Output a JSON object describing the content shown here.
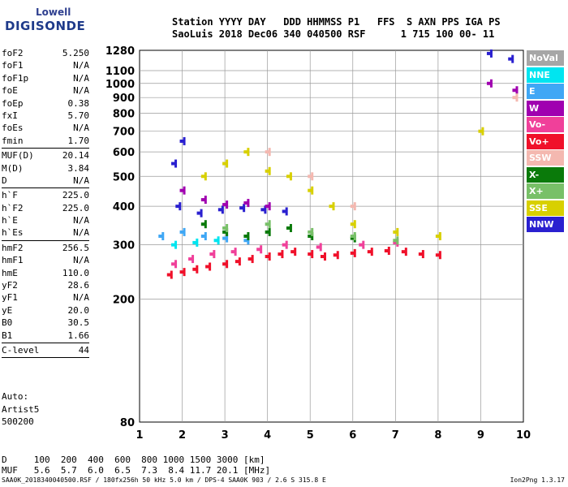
{
  "logo": {
    "top": "Lowell",
    "bottom": "DIGISONDE"
  },
  "header": {
    "line1": "Station YYYY DAY   DDD HHMMSS P1   FFS  S AXN PPS IGA PS",
    "line2": "SaoLuis 2018 Dec06 340 040500 RSF      1 715 100 00- 11"
  },
  "params": [
    {
      "label": "foF2",
      "value": "5.250"
    },
    {
      "label": "foF1",
      "value": "N/A"
    },
    {
      "label": "foF1p",
      "value": "N/A"
    },
    {
      "label": "foE",
      "value": "N/A"
    },
    {
      "label": "foEp",
      "value": "0.38"
    },
    {
      "label": "fxI",
      "value": "5.70"
    },
    {
      "label": "foEs",
      "value": "N/A"
    },
    {
      "label": "fmin",
      "value": "1.70",
      "sep": true
    },
    {
      "label": "MUF(D)",
      "value": "20.14"
    },
    {
      "label": "M(D)",
      "value": "3.84"
    },
    {
      "label": "D",
      "value": "N/A",
      "sep": true
    },
    {
      "label": "h`F",
      "value": "225.0"
    },
    {
      "label": "h`F2",
      "value": "225.0"
    },
    {
      "label": "h`E",
      "value": "N/A"
    },
    {
      "label": "h`Es",
      "value": "N/A",
      "sep": true
    },
    {
      "label": "hmF2",
      "value": "256.5"
    },
    {
      "label": "hmF1",
      "value": "N/A"
    },
    {
      "label": "hmE",
      "value": "110.0"
    },
    {
      "label": "yF2",
      "value": "28.6"
    },
    {
      "label": "yF1",
      "value": "N/A"
    },
    {
      "label": "yE",
      "value": "20.0"
    },
    {
      "label": "B0",
      "value": "30.5"
    },
    {
      "label": "B1",
      "value": "1.66",
      "sep": true
    },
    {
      "label": "C-level",
      "value": "44",
      "sep": true
    }
  ],
  "auto": {
    "line1": "Auto:",
    "line2": "Artist5",
    "line3": "500200"
  },
  "dmuf": {
    "d_line": "D     100  200  400  600  800 1000 1500 3000 [km]",
    "muf_line": "MUF   5.6  5.7  6.0  6.5  7.3  8.4 11.7 20.1 [MHz]"
  },
  "footer": "SAA0K_2018340040500.RSF / 180fx256h 50 kHz 5.0 km / DPS-4 SAA0K 903 / 2.6 S 315.8 E",
  "version": "Ion2Png 1.3.17",
  "legend": [
    {
      "label": "NoVal",
      "color": "#a6a6a6"
    },
    {
      "label": "NNE",
      "color": "#00e5f0"
    },
    {
      "label": "E",
      "color": "#3fa7f5"
    },
    {
      "label": "W",
      "color": "#a000b0"
    },
    {
      "label": "Vo-",
      "color": "#f0409a"
    },
    {
      "label": "Vo+",
      "color": "#f0102a"
    },
    {
      "label": "SSW",
      "color": "#f4b8b0"
    },
    {
      "label": "X-",
      "color": "#0a7a0a"
    },
    {
      "label": "X+",
      "color": "#78c068"
    },
    {
      "label": "SSE",
      "color": "#d8d000"
    },
    {
      "label": "NNW",
      "color": "#2a20d0"
    }
  ],
  "chart_data": {
    "type": "scatter",
    "title": "",
    "xlabel": "",
    "ylabel": "",
    "xlim": [
      1,
      10
    ],
    "ylim": [
      80,
      1280
    ],
    "yscale": "log",
    "grid": true,
    "x_ticks": [
      "1",
      "2",
      "3",
      "4",
      "5",
      "6",
      "7",
      "8",
      "9",
      "10"
    ],
    "y_ticks": [
      "80",
      "200",
      "300",
      "400",
      "500",
      "600",
      "700",
      "800",
      "900",
      "1000",
      "1100",
      "1280"
    ],
    "legend_position": "right",
    "series": [
      {
        "name": "Vo+",
        "color": "#f0102a",
        "points": [
          [
            1.7,
            240
          ],
          [
            2.0,
            245
          ],
          [
            2.3,
            250
          ],
          [
            2.6,
            255
          ],
          [
            3.0,
            260
          ],
          [
            3.3,
            265
          ],
          [
            3.6,
            270
          ],
          [
            4.0,
            275
          ],
          [
            4.3,
            280
          ],
          [
            4.6,
            285
          ],
          [
            5.0,
            280
          ],
          [
            5.3,
            275
          ],
          [
            5.6,
            278
          ],
          [
            6.0,
            282
          ],
          [
            6.4,
            285
          ],
          [
            6.8,
            287
          ],
          [
            7.2,
            285
          ],
          [
            7.6,
            280
          ],
          [
            8.0,
            278
          ]
        ]
      },
      {
        "name": "Vo-",
        "color": "#f0409a",
        "points": [
          [
            1.8,
            260
          ],
          [
            2.2,
            270
          ],
          [
            2.7,
            280
          ],
          [
            3.2,
            285
          ],
          [
            3.8,
            290
          ],
          [
            4.4,
            300
          ],
          [
            5.2,
            295
          ],
          [
            6.2,
            300
          ],
          [
            7.0,
            305
          ]
        ]
      },
      {
        "name": "NNW",
        "color": "#2a20d0",
        "points": [
          [
            1.9,
            400
          ],
          [
            2.4,
            380
          ],
          [
            2.9,
            390
          ],
          [
            3.4,
            395
          ],
          [
            3.9,
            390
          ],
          [
            4.4,
            385
          ],
          [
            1.8,
            550
          ],
          [
            2.0,
            650
          ],
          [
            9.2,
            1250
          ],
          [
            9.7,
            1200
          ]
        ]
      },
      {
        "name": "W",
        "color": "#a000b0",
        "points": [
          [
            2.0,
            450
          ],
          [
            2.5,
            420
          ],
          [
            3.0,
            405
          ],
          [
            3.5,
            410
          ],
          [
            4.0,
            400
          ],
          [
            9.2,
            1000
          ],
          [
            9.8,
            950
          ]
        ]
      },
      {
        "name": "E",
        "color": "#3fa7f5",
        "points": [
          [
            1.5,
            320
          ],
          [
            2.0,
            330
          ],
          [
            2.5,
            320
          ],
          [
            3.0,
            315
          ],
          [
            3.5,
            310
          ]
        ]
      },
      {
        "name": "NNE",
        "color": "#00e5f0",
        "points": [
          [
            1.8,
            300
          ],
          [
            2.3,
            305
          ],
          [
            2.8,
            310
          ]
        ]
      },
      {
        "name": "X-",
        "color": "#0a7a0a",
        "points": [
          [
            2.5,
            350
          ],
          [
            3.0,
            330
          ],
          [
            3.5,
            320
          ],
          [
            4.0,
            330
          ],
          [
            4.5,
            340
          ],
          [
            5.0,
            320
          ],
          [
            6.0,
            315
          ]
        ]
      },
      {
        "name": "X+",
        "color": "#78c068",
        "points": [
          [
            3.0,
            340
          ],
          [
            4.0,
            350
          ],
          [
            5.0,
            330
          ],
          [
            6.0,
            320
          ],
          [
            7.0,
            310
          ]
        ]
      },
      {
        "name": "SSE",
        "color": "#d8d000",
        "points": [
          [
            2.5,
            500
          ],
          [
            3.0,
            550
          ],
          [
            3.5,
            600
          ],
          [
            4.0,
            520
          ],
          [
            4.5,
            500
          ],
          [
            5.0,
            450
          ],
          [
            5.5,
            400
          ],
          [
            6.0,
            350
          ],
          [
            7.0,
            330
          ],
          [
            8.0,
            320
          ],
          [
            9.0,
            700
          ]
        ]
      },
      {
        "name": "SSW",
        "color": "#f4b8b0",
        "points": [
          [
            4.0,
            600
          ],
          [
            5.0,
            500
          ],
          [
            6.0,
            400
          ],
          [
            9.8,
            900
          ]
        ]
      }
    ]
  }
}
